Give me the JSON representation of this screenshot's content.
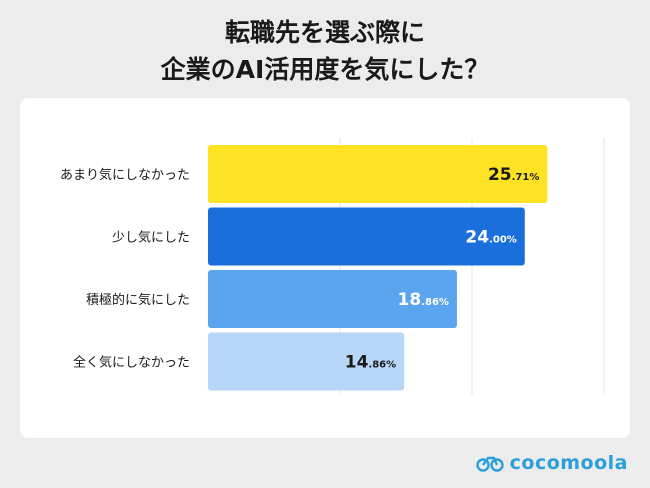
{
  "title_lines": [
    "転職先を選ぶ際に",
    "企業のAI活用度を気にした？"
  ],
  "brand": "cocomoola",
  "chart_data": {
    "type": "bar",
    "orientation": "horizontal",
    "categories": [
      "あまり気にしなかった",
      "少し気にした",
      "積極的に気にした",
      "全く気にしなかった"
    ],
    "values": [
      25.71,
      24.0,
      18.86,
      14.86
    ],
    "value_labels": [
      {
        "int": "25",
        "dec": ".71%"
      },
      {
        "int": "24",
        "dec": ".00%"
      },
      {
        "int": "18",
        "dec": ".86%"
      },
      {
        "int": "14",
        "dec": ".86%"
      }
    ],
    "xlim": [
      0,
      30
    ],
    "grid": true,
    "colors": [
      "#fde324",
      "#1b6fdc",
      "#5aa5ee",
      "#b7d6f8"
    ],
    "label_colors": [
      "#1a1a1a",
      "#ffffff",
      "#ffffff",
      "#1a1a1a"
    ]
  }
}
